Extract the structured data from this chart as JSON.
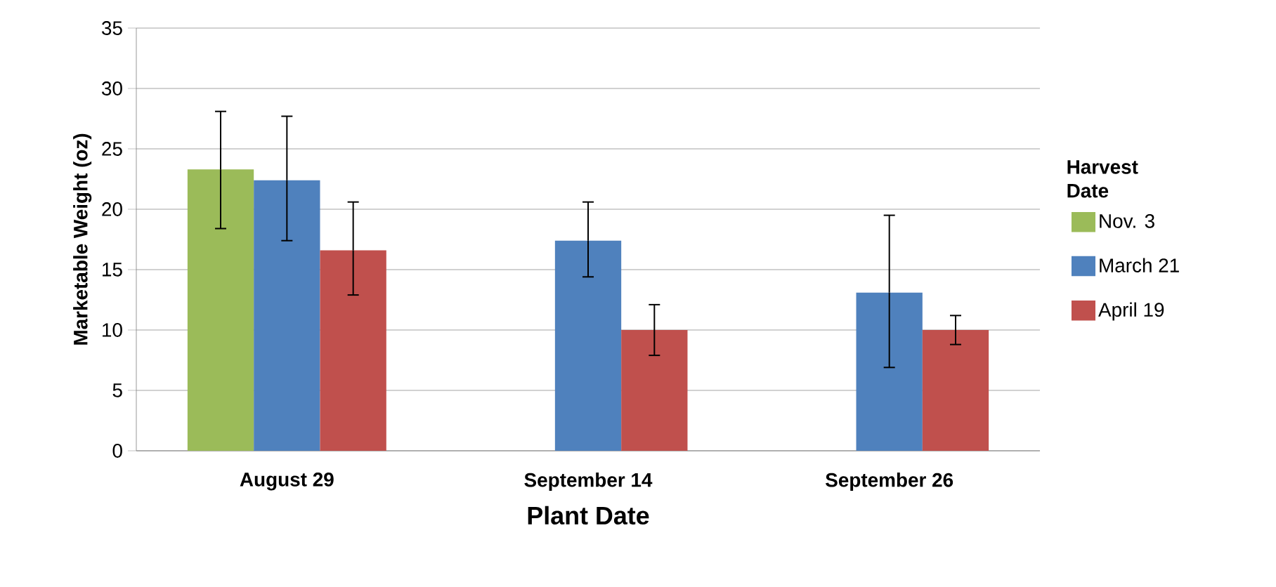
{
  "chart_data": {
    "type": "bar",
    "xlabel": "Plant Date",
    "ylabel": "Marketable Weight (oz)",
    "legend_title": "Harvest Date",
    "legend": "right",
    "grid": "y",
    "categories": [
      "August 29",
      "September 14",
      "September 26"
    ],
    "ylim": [
      0,
      35
    ],
    "yticks": [
      0,
      5,
      10,
      15,
      20,
      25,
      30,
      35
    ],
    "series": [
      {
        "name": "Nov. 3",
        "color": "#9bbb59",
        "values": [
          23.3,
          null,
          null
        ],
        "errors": [
          [
            18.4,
            28.1
          ],
          null,
          null
        ]
      },
      {
        "name": "March 21",
        "color": "#4f81bd",
        "values": [
          22.4,
          17.4,
          13.1
        ],
        "errors": [
          [
            17.4,
            27.7
          ],
          [
            14.4,
            20.6
          ],
          [
            6.9,
            19.5
          ]
        ]
      },
      {
        "name": "April 19",
        "color": "#c0504d",
        "values": [
          16.6,
          10.0,
          10.0
        ],
        "errors": [
          [
            12.9,
            20.6
          ],
          [
            7.9,
            12.1
          ],
          [
            8.8,
            11.2
          ]
        ]
      }
    ]
  }
}
